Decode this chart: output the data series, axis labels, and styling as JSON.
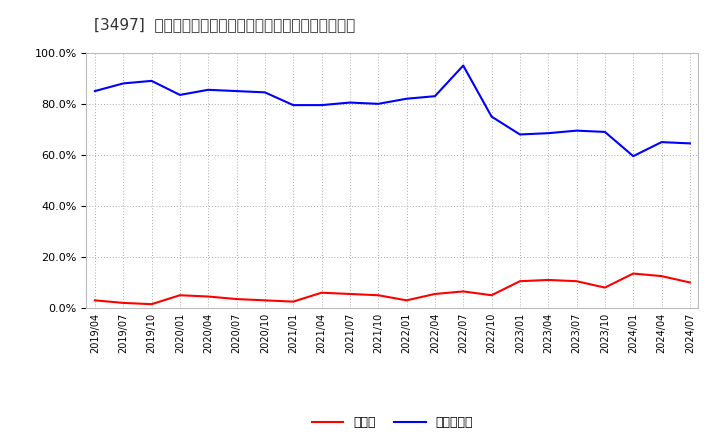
{
  "title": "[3497]  現預金、有利子負債の総資産に対する比率の推移",
  "x_labels": [
    "2019/04",
    "2019/07",
    "2019/10",
    "2020/01",
    "2020/04",
    "2020/07",
    "2020/10",
    "2021/01",
    "2021/04",
    "2021/07",
    "2021/10",
    "2022/01",
    "2022/04",
    "2022/07",
    "2022/10",
    "2023/01",
    "2023/04",
    "2023/07",
    "2023/10",
    "2024/01",
    "2024/04",
    "2024/07"
  ],
  "cash": [
    3.0,
    2.0,
    1.5,
    5.0,
    4.5,
    3.5,
    3.0,
    2.5,
    6.0,
    5.5,
    5.0,
    3.0,
    5.5,
    6.5,
    5.0,
    10.5,
    11.0,
    10.5,
    8.0,
    13.5,
    12.5,
    10.0
  ],
  "interest_bearing_debt": [
    85.0,
    88.0,
    89.0,
    83.5,
    85.5,
    85.0,
    84.5,
    79.5,
    79.5,
    80.5,
    80.0,
    82.0,
    83.0,
    95.0,
    75.0,
    68.0,
    68.5,
    69.5,
    69.0,
    59.5,
    65.0,
    64.5
  ],
  "cash_color": "#ff0000",
  "debt_color": "#0000ff",
  "background_color": "#ffffff",
  "grid_color": "#aaaaaa",
  "title_fontsize": 11,
  "ylim": [
    0,
    100
  ],
  "legend_labels": [
    "現預金",
    "有利子負債"
  ]
}
